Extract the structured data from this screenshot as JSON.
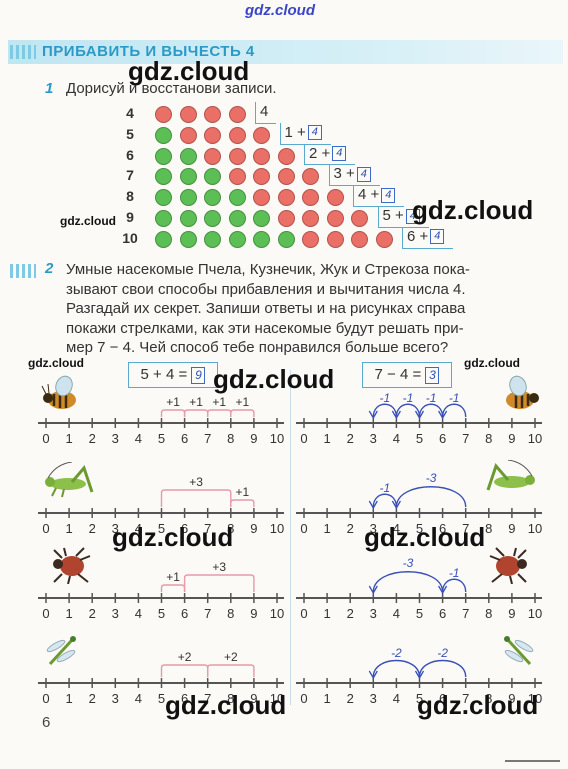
{
  "watermark": {
    "text": "gdz.cloud"
  },
  "section": {
    "title": "ПРИБАВИТЬ И ВЫЧЕСТЬ 4"
  },
  "task1": {
    "number": "1",
    "text": "Дорисуй и восстанови записи.",
    "rows": [
      {
        "label": "4",
        "green": 0,
        "red": 4,
        "expr": "4",
        "answer": ""
      },
      {
        "label": "5",
        "green": 1,
        "red": 4,
        "expr": "1 +",
        "answer": "4"
      },
      {
        "label": "6",
        "green": 2,
        "red": 4,
        "expr": "2 +",
        "answer": "4"
      },
      {
        "label": "7",
        "green": 3,
        "red": 4,
        "expr": "3 +",
        "answer": "4"
      },
      {
        "label": "8",
        "green": 4,
        "red": 4,
        "expr": "4 +",
        "answer": "4"
      },
      {
        "label": "9",
        "green": 5,
        "red": 4,
        "expr": "5 +",
        "answer": "4"
      },
      {
        "label": "10",
        "green": 6,
        "red": 4,
        "expr": "6 +",
        "answer": "4"
      }
    ],
    "colors": {
      "green": "#5cbf55",
      "red": "#ea6f66"
    }
  },
  "task2": {
    "number": "2",
    "lines": [
      "Умные насекомые Пчела, Кузнечик, Жук и Стрекоза пока-",
      "зывают свои способы прибавления и вычитания числа 4.",
      "Разгадай их секрет. Запиши ответы и на рисунках справа",
      "покажи стрелками, как эти насекомые будут решать при-",
      "мер  7 − 4.  Чей способ тебе понравился больше всего?"
    ],
    "left_equation": {
      "text": "5 + 4 =",
      "answer": "9"
    },
    "right_equation": {
      "text": "7 − 4 =",
      "answer": "3"
    },
    "ticks": [
      "0",
      "1",
      "2",
      "3",
      "4",
      "5",
      "6",
      "7",
      "8",
      "9",
      "10"
    ],
    "rows": [
      {
        "insect": "bee-icon",
        "left_arcs": [
          {
            "from": 5,
            "to": 6,
            "label": "+1"
          },
          {
            "from": 6,
            "to": 7,
            "label": "+1"
          },
          {
            "from": 7,
            "to": 8,
            "label": "+1"
          },
          {
            "from": 8,
            "to": 9,
            "label": "+1"
          }
        ],
        "right_arcs": [
          {
            "from": 7,
            "to": 6,
            "label": "-1"
          },
          {
            "from": 6,
            "to": 5,
            "label": "-1"
          },
          {
            "from": 5,
            "to": 4,
            "label": "-1"
          },
          {
            "from": 4,
            "to": 3,
            "label": "-1"
          }
        ]
      },
      {
        "insect": "grasshopper-icon",
        "left_arcs": [
          {
            "from": 5,
            "to": 8,
            "label": "+3"
          },
          {
            "from": 8,
            "to": 9,
            "label": "+1"
          }
        ],
        "right_arcs": [
          {
            "from": 7,
            "to": 4,
            "label": "-3"
          },
          {
            "from": 4,
            "to": 3,
            "label": "-1"
          }
        ]
      },
      {
        "insect": "beetle-icon",
        "left_arcs": [
          {
            "from": 5,
            "to": 6,
            "label": "+1"
          },
          {
            "from": 6,
            "to": 9,
            "label": "+3"
          }
        ],
        "right_arcs": [
          {
            "from": 6,
            "to": 3,
            "label": "-3"
          },
          {
            "from": 7,
            "to": 6,
            "label": "-1"
          }
        ]
      },
      {
        "insect": "dragonfly-icon",
        "left_arcs": [
          {
            "from": 5,
            "to": 7,
            "label": "+2"
          },
          {
            "from": 7,
            "to": 9,
            "label": "+2"
          }
        ],
        "right_arcs": [
          {
            "from": 5,
            "to": 3,
            "label": "-2"
          },
          {
            "from": 7,
            "to": 5,
            "label": "-2"
          }
        ]
      }
    ],
    "colors": {
      "left_arc": "#e79aa7",
      "right_arc": "#3850b8",
      "line": "#555"
    }
  },
  "page": {
    "number": "6"
  }
}
